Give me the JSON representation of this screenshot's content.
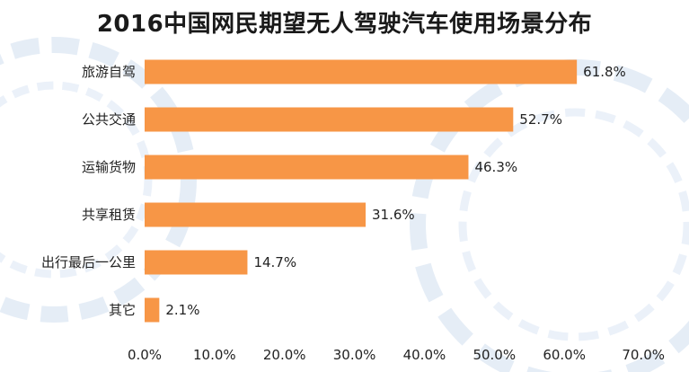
{
  "chart_data": {
    "type": "bar",
    "orientation": "horizontal",
    "title": "2016中国网民期望无人驾驶汽车使用场景分布",
    "categories": [
      "旅游自驾",
      "公共交通",
      "运输货物",
      "共享租赁",
      "出行最后一公里",
      "其它"
    ],
    "values": [
      61.8,
      52.7,
      46.3,
      31.6,
      14.7,
      2.1
    ],
    "value_labels": [
      "61.8%",
      "52.7%",
      "46.3%",
      "31.6%",
      "14.7%",
      "2.1%"
    ],
    "x_ticks": [
      "0.0%",
      "10.0%",
      "20.0%",
      "30.0%",
      "40.0%",
      "50.0%",
      "60.0%",
      "70.0%"
    ],
    "xlim": [
      0,
      70
    ],
    "xlabel": "",
    "ylabel": "",
    "grid": false,
    "legend": "none",
    "bar_color": "#F79646"
  }
}
